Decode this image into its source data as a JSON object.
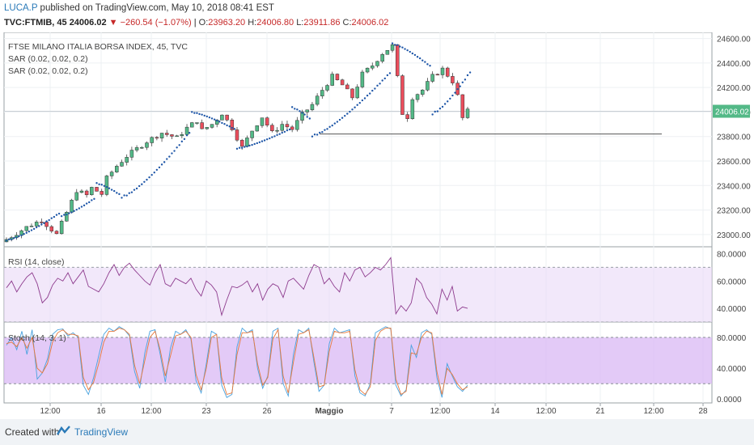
{
  "header": {
    "author": "LUCA.P",
    "published": "published on TradingView.com, May 10, 2018 08:41 EST",
    "symbol": "TVC:FTMIB, 45",
    "last": "24006.02",
    "change": "−260.54 (−1.07%)",
    "o_label": "O:",
    "o": "23963.20",
    "h_label": "H:",
    "h": "24006.80",
    "l_label": "L:",
    "l": "23911.86",
    "c_label": "C:",
    "c": "24006.02"
  },
  "footer": {
    "created": "Created with",
    "brand": "TradingView"
  },
  "colors": {
    "up": "#53b987",
    "down": "#eb4d5c",
    "sar": "#1f57a8",
    "rsi": "#8e3c8e",
    "band": "#e9d9f6",
    "k": "#4aa3df",
    "d": "#e8783a",
    "price_label_bg": "#53b987"
  },
  "chart_data": [
    {
      "type": "candlestick",
      "title": "FTSE MILANO ITALIA BORSA INDEX, 45, TVC",
      "indicators": [
        "SAR (0.02, 0.02, 0.2)",
        "SAR (0.02, 0.02, 0.2)"
      ],
      "y_ticks": [
        "24600.00",
        "24400.00",
        "24200.00",
        "24000.00",
        "23800.00",
        "23600.00",
        "23400.00",
        "23200.00",
        "23000.00"
      ],
      "ylim": [
        22900,
        24650
      ],
      "last_price_label": "24006.02",
      "horizontal_line": 23820,
      "close_path": [
        [
          0,
          22960
        ],
        [
          4,
          23060
        ],
        [
          7,
          23120
        ],
        [
          10,
          23000
        ],
        [
          12,
          23180
        ],
        [
          14,
          23360
        ],
        [
          16,
          23320
        ],
        [
          17,
          23380
        ],
        [
          19,
          23330
        ],
        [
          20,
          23460
        ],
        [
          22,
          23560
        ],
        [
          24,
          23640
        ],
        [
          26,
          23700
        ],
        [
          28,
          23760
        ],
        [
          31,
          23830
        ],
        [
          34,
          23790
        ],
        [
          36,
          23870
        ],
        [
          38,
          23930
        ],
        [
          39,
          23850
        ],
        [
          41,
          23900
        ],
        [
          43,
          23990
        ],
        [
          45,
          23870
        ],
        [
          47,
          23710
        ],
        [
          49,
          23850
        ],
        [
          51,
          23960
        ],
        [
          53,
          23830
        ],
        [
          55,
          23900
        ],
        [
          57,
          23860
        ],
        [
          59,
          23980
        ],
        [
          61,
          24060
        ],
        [
          63,
          24180
        ],
        [
          65,
          24290
        ],
        [
          67,
          24220
        ],
        [
          69,
          24120
        ],
        [
          71,
          24310
        ],
        [
          73,
          24380
        ],
        [
          75,
          24480
        ],
        [
          77,
          24540
        ],
        [
          78,
          24280
        ],
        [
          79,
          23990
        ],
        [
          80,
          23960
        ],
        [
          81,
          24120
        ],
        [
          83,
          24180
        ],
        [
          85,
          24290
        ],
        [
          87,
          24350
        ],
        [
          89,
          24250
        ],
        [
          90,
          24130
        ],
        [
          91,
          23950
        ],
        [
          92,
          24006
        ]
      ],
      "sar_segments": [
        {
          "from": 0,
          "to": 10,
          "start": 22950,
          "end": 23160
        },
        {
          "from": 11,
          "to": 17,
          "start": 23150,
          "end": 23280
        },
        {
          "from": 18,
          "to": 22,
          "start": 23420,
          "end": 23340
        },
        {
          "from": 23,
          "to": 36,
          "start": 23300,
          "end": 23810
        },
        {
          "from": 37,
          "to": 45,
          "start": 24000,
          "end": 23870
        },
        {
          "from": 46,
          "to": 56,
          "start": 23700,
          "end": 23850
        },
        {
          "from": 57,
          "to": 60,
          "start": 24040,
          "end": 23960
        },
        {
          "from": 61,
          "to": 76,
          "start": 23800,
          "end": 24300
        },
        {
          "from": 77,
          "to": 84,
          "start": 24560,
          "end": 24390
        },
        {
          "from": 85,
          "to": 92,
          "start": 23980,
          "end": 24300
        }
      ]
    },
    {
      "type": "line",
      "title": "RSI (14, close)",
      "y_ticks": [
        "80.0000",
        "60.0000",
        "40.0000"
      ],
      "ylim": [
        30,
        85
      ],
      "band": [
        30,
        70
      ],
      "values": [
        55,
        60,
        52,
        58,
        63,
        66,
        58,
        44,
        48,
        57,
        62,
        60,
        66,
        58,
        63,
        68,
        56,
        54,
        52,
        58,
        66,
        72,
        64,
        70,
        73,
        68,
        64,
        60,
        57,
        66,
        72,
        58,
        56,
        62,
        60,
        58,
        62,
        54,
        49,
        60,
        57,
        52,
        35,
        46,
        56,
        55,
        57,
        60,
        52,
        58,
        46,
        54,
        58,
        56,
        48,
        60,
        62,
        58,
        54,
        64,
        72,
        70,
        58,
        62,
        56,
        52,
        66,
        60,
        68,
        70,
        63,
        66,
        70,
        68,
        72,
        77,
        36,
        42,
        38,
        44,
        62,
        58,
        48,
        43,
        36,
        54,
        46,
        56,
        38,
        41,
        40
      ]
    },
    {
      "type": "line",
      "title": "Stoch (14, 3, 1)",
      "y_ticks": [
        "80.0000",
        "40.0000",
        "0.0000"
      ],
      "ylim": [
        -5,
        100
      ],
      "band": [
        20,
        80
      ],
      "series": [
        {
          "name": "%K",
          "values": [
            70,
            80,
            64,
            88,
            58,
            90,
            26,
            34,
            52,
            84,
            90,
            91,
            82,
            86,
            80,
            18,
            6,
            28,
            56,
            84,
            92,
            88,
            94,
            90,
            82,
            36,
            14,
            60,
            88,
            90,
            58,
            22,
            66,
            88,
            84,
            90,
            78,
            24,
            8,
            46,
            88,
            84,
            18,
            2,
            6,
            68,
            92,
            86,
            90,
            40,
            14,
            30,
            88,
            92,
            20,
            4,
            58,
            90,
            86,
            92,
            48,
            10,
            18,
            72,
            92,
            86,
            88,
            90,
            30,
            8,
            4,
            20,
            86,
            90,
            94,
            91,
            18,
            4,
            12,
            70,
            54,
            86,
            90,
            84,
            28,
            2,
            46,
            30,
            16,
            10,
            18
          ]
        },
        {
          "name": "%D",
          "values": [
            72,
            74,
            68,
            80,
            66,
            80,
            40,
            34,
            46,
            74,
            86,
            90,
            84,
            84,
            82,
            28,
            12,
            22,
            46,
            74,
            88,
            88,
            92,
            90,
            84,
            44,
            20,
            50,
            80,
            88,
            64,
            30,
            56,
            82,
            84,
            88,
            80,
            32,
            12,
            40,
            80,
            84,
            28,
            6,
            8,
            58,
            86,
            86,
            88,
            46,
            18,
            28,
            78,
            90,
            30,
            8,
            48,
            84,
            86,
            90,
            54,
            16,
            18,
            62,
            88,
            86,
            86,
            88,
            38,
            12,
            6,
            16,
            76,
            88,
            92,
            92,
            26,
            6,
            10,
            60,
            58,
            80,
            88,
            86,
            36,
            6,
            40,
            32,
            20,
            12,
            16
          ]
        }
      ]
    }
  ],
  "x_axis": {
    "labels": [
      "12:00",
      "16",
      "12:00",
      "23",
      "26",
      "Maggio",
      "7",
      "12:00",
      "14",
      "12:00",
      "21",
      "12:00",
      "28"
    ]
  }
}
